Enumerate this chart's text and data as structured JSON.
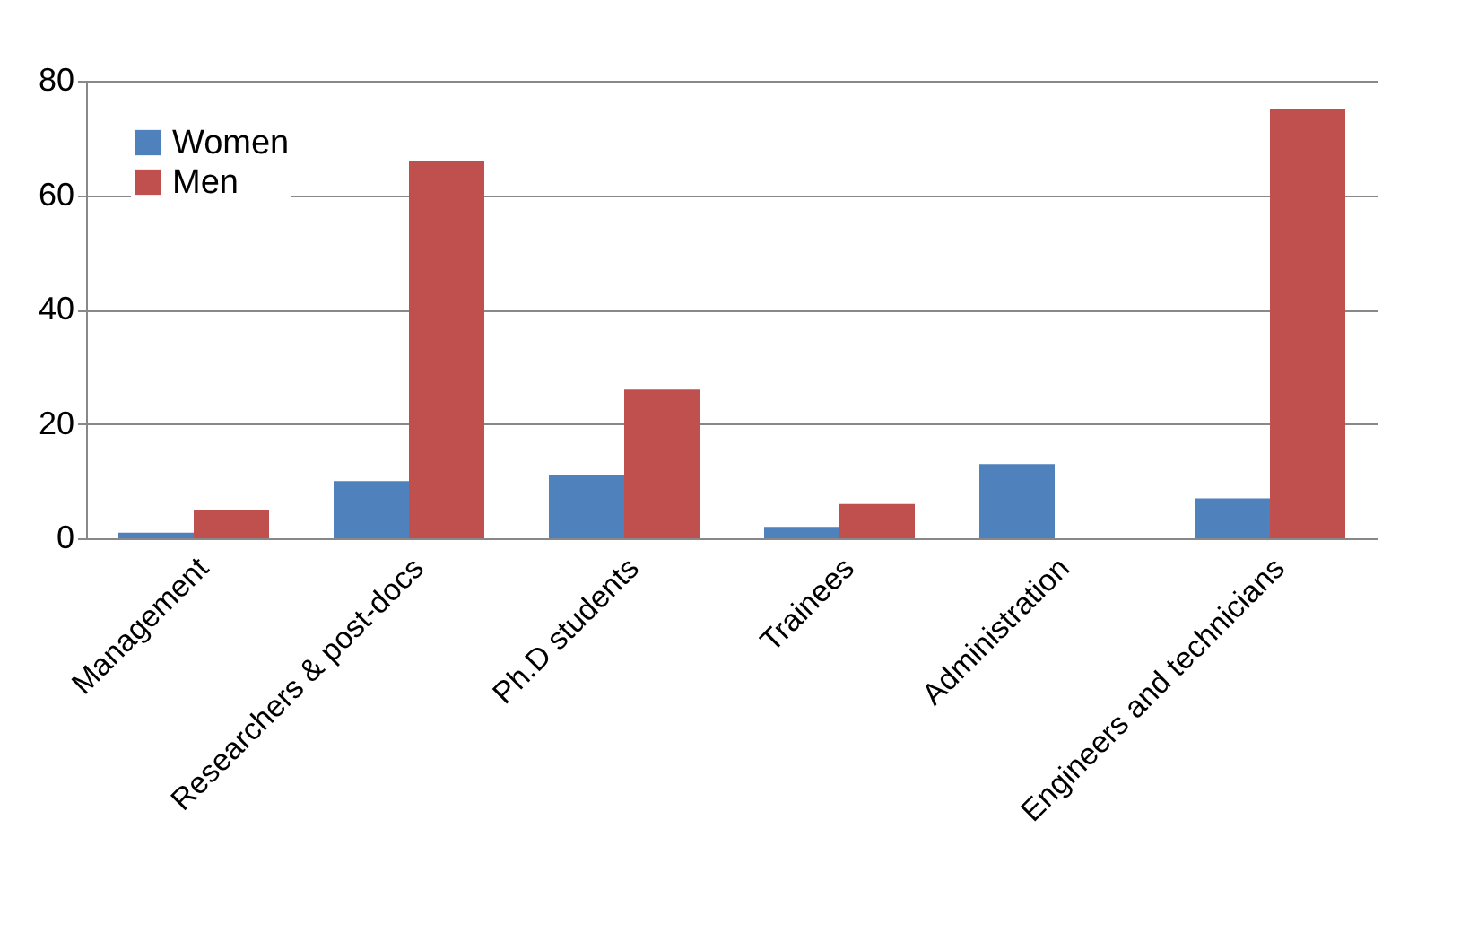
{
  "chart_data": {
    "type": "bar",
    "categories": [
      "Management",
      "Researchers & post-docs",
      "Ph.D students",
      "Trainees",
      "Administration",
      "Engineers and technicians"
    ],
    "series": [
      {
        "name": "Women",
        "color": "#4f81bd",
        "values": [
          1,
          10,
          11,
          2,
          13,
          7
        ]
      },
      {
        "name": "Men",
        "color": "#c0504d",
        "values": [
          5,
          66,
          26,
          6,
          0,
          75
        ]
      }
    ],
    "ylim": [
      0,
      80
    ],
    "yticks": [
      0,
      20,
      40,
      60,
      80
    ],
    "grid": "y",
    "legend": "top left"
  }
}
